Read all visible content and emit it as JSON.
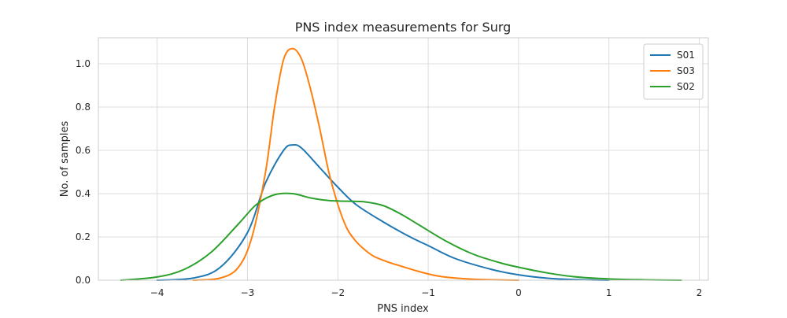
{
  "chart_data": {
    "type": "line",
    "title": "PNS index measurements for Surg",
    "xlabel": "PNS index",
    "ylabel": "No. of samples",
    "xlim": [
      -4.65,
      2.1
    ],
    "ylim": [
      0,
      1.12
    ],
    "xticks": [
      -4,
      -3,
      -2,
      -1,
      0,
      1,
      2
    ],
    "xtick_labels": [
      "−4",
      "−3",
      "−2",
      "−1",
      "0",
      "1",
      "2"
    ],
    "yticks": [
      0.0,
      0.2,
      0.4,
      0.6,
      0.8,
      1.0
    ],
    "ytick_labels": [
      "0.0",
      "0.2",
      "0.4",
      "0.6",
      "0.8",
      "1.0"
    ],
    "grid": true,
    "legend_position": "top-right",
    "series": [
      {
        "name": "S01",
        "color": "#1f77b4",
        "x": [
          -4.0,
          -3.6,
          -3.3,
          -3.0,
          -2.8,
          -2.6,
          -2.5,
          -2.4,
          -2.2,
          -2.0,
          -1.8,
          -1.5,
          -1.2,
          -1.0,
          -0.7,
          -0.3,
          0.0,
          0.3,
          0.6,
          1.0
        ],
        "y": [
          0.0,
          0.01,
          0.06,
          0.22,
          0.45,
          0.6,
          0.625,
          0.61,
          0.52,
          0.43,
          0.35,
          0.27,
          0.2,
          0.16,
          0.1,
          0.05,
          0.025,
          0.01,
          0.003,
          0.0
        ]
      },
      {
        "name": "S03",
        "color": "#ff7f0e",
        "x": [
          -3.6,
          -3.3,
          -3.1,
          -2.95,
          -2.8,
          -2.7,
          -2.6,
          -2.5,
          -2.4,
          -2.3,
          -2.2,
          -2.1,
          -2.0,
          -1.9,
          -1.8,
          -1.7,
          -1.6,
          -1.45,
          -1.3,
          -1.1,
          -0.9,
          -0.7,
          -0.4,
          0.0
        ],
        "y": [
          0.0,
          0.01,
          0.06,
          0.2,
          0.5,
          0.8,
          1.02,
          1.07,
          1.02,
          0.88,
          0.7,
          0.5,
          0.35,
          0.24,
          0.18,
          0.14,
          0.11,
          0.085,
          0.065,
          0.04,
          0.02,
          0.01,
          0.003,
          0.0
        ]
      },
      {
        "name": "S02",
        "color": "#2ca02c",
        "x": [
          -4.4,
          -4.0,
          -3.7,
          -3.4,
          -3.1,
          -2.9,
          -2.7,
          -2.5,
          -2.3,
          -2.1,
          -1.9,
          -1.7,
          -1.5,
          -1.3,
          -1.1,
          -0.8,
          -0.5,
          -0.2,
          0.0,
          0.3,
          0.6,
          1.0,
          1.4,
          1.8
        ],
        "y": [
          0.0,
          0.015,
          0.05,
          0.13,
          0.26,
          0.35,
          0.395,
          0.4,
          0.38,
          0.368,
          0.365,
          0.362,
          0.345,
          0.305,
          0.255,
          0.18,
          0.12,
          0.08,
          0.06,
          0.035,
          0.017,
          0.006,
          0.002,
          0.0
        ]
      }
    ]
  }
}
